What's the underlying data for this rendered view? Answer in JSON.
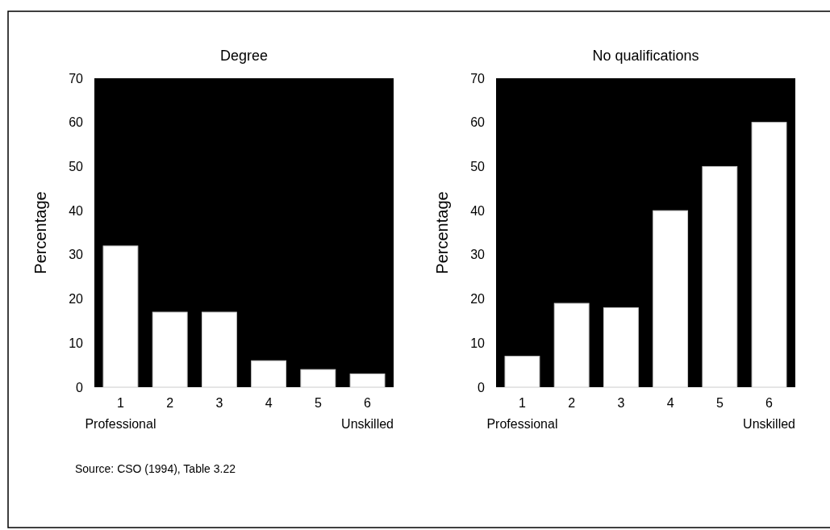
{
  "chart_data": [
    {
      "type": "bar",
      "title": "Degree",
      "ylabel": "Percentage",
      "categories": [
        "1\nProfessional",
        "2",
        "3",
        "4",
        "5",
        "6\nUnskilled"
      ],
      "values": [
        32,
        17,
        17,
        6,
        4,
        3
      ],
      "color": "#ffffff",
      "ylim": [
        0,
        70
      ],
      "yticks": [
        0,
        10,
        20,
        30,
        40,
        50,
        60,
        70
      ],
      "annotations": [
        "Source: CSO (1994), Table 3.22"
      ]
    },
    {
      "type": "bar",
      "title": "No qualifications",
      "ylabel": "Percentage",
      "categories": [
        "1\nProfessional",
        "2",
        "3",
        "4",
        "5",
        "6\nUnskilled"
      ],
      "values": [
        7,
        19,
        18,
        40,
        50,
        60
      ],
      "color": "#ffffff",
      "ylim": [
        0,
        70
      ],
      "yticks": [
        0,
        10,
        20,
        30,
        40,
        50,
        60,
        70
      ]
    }
  ]
}
